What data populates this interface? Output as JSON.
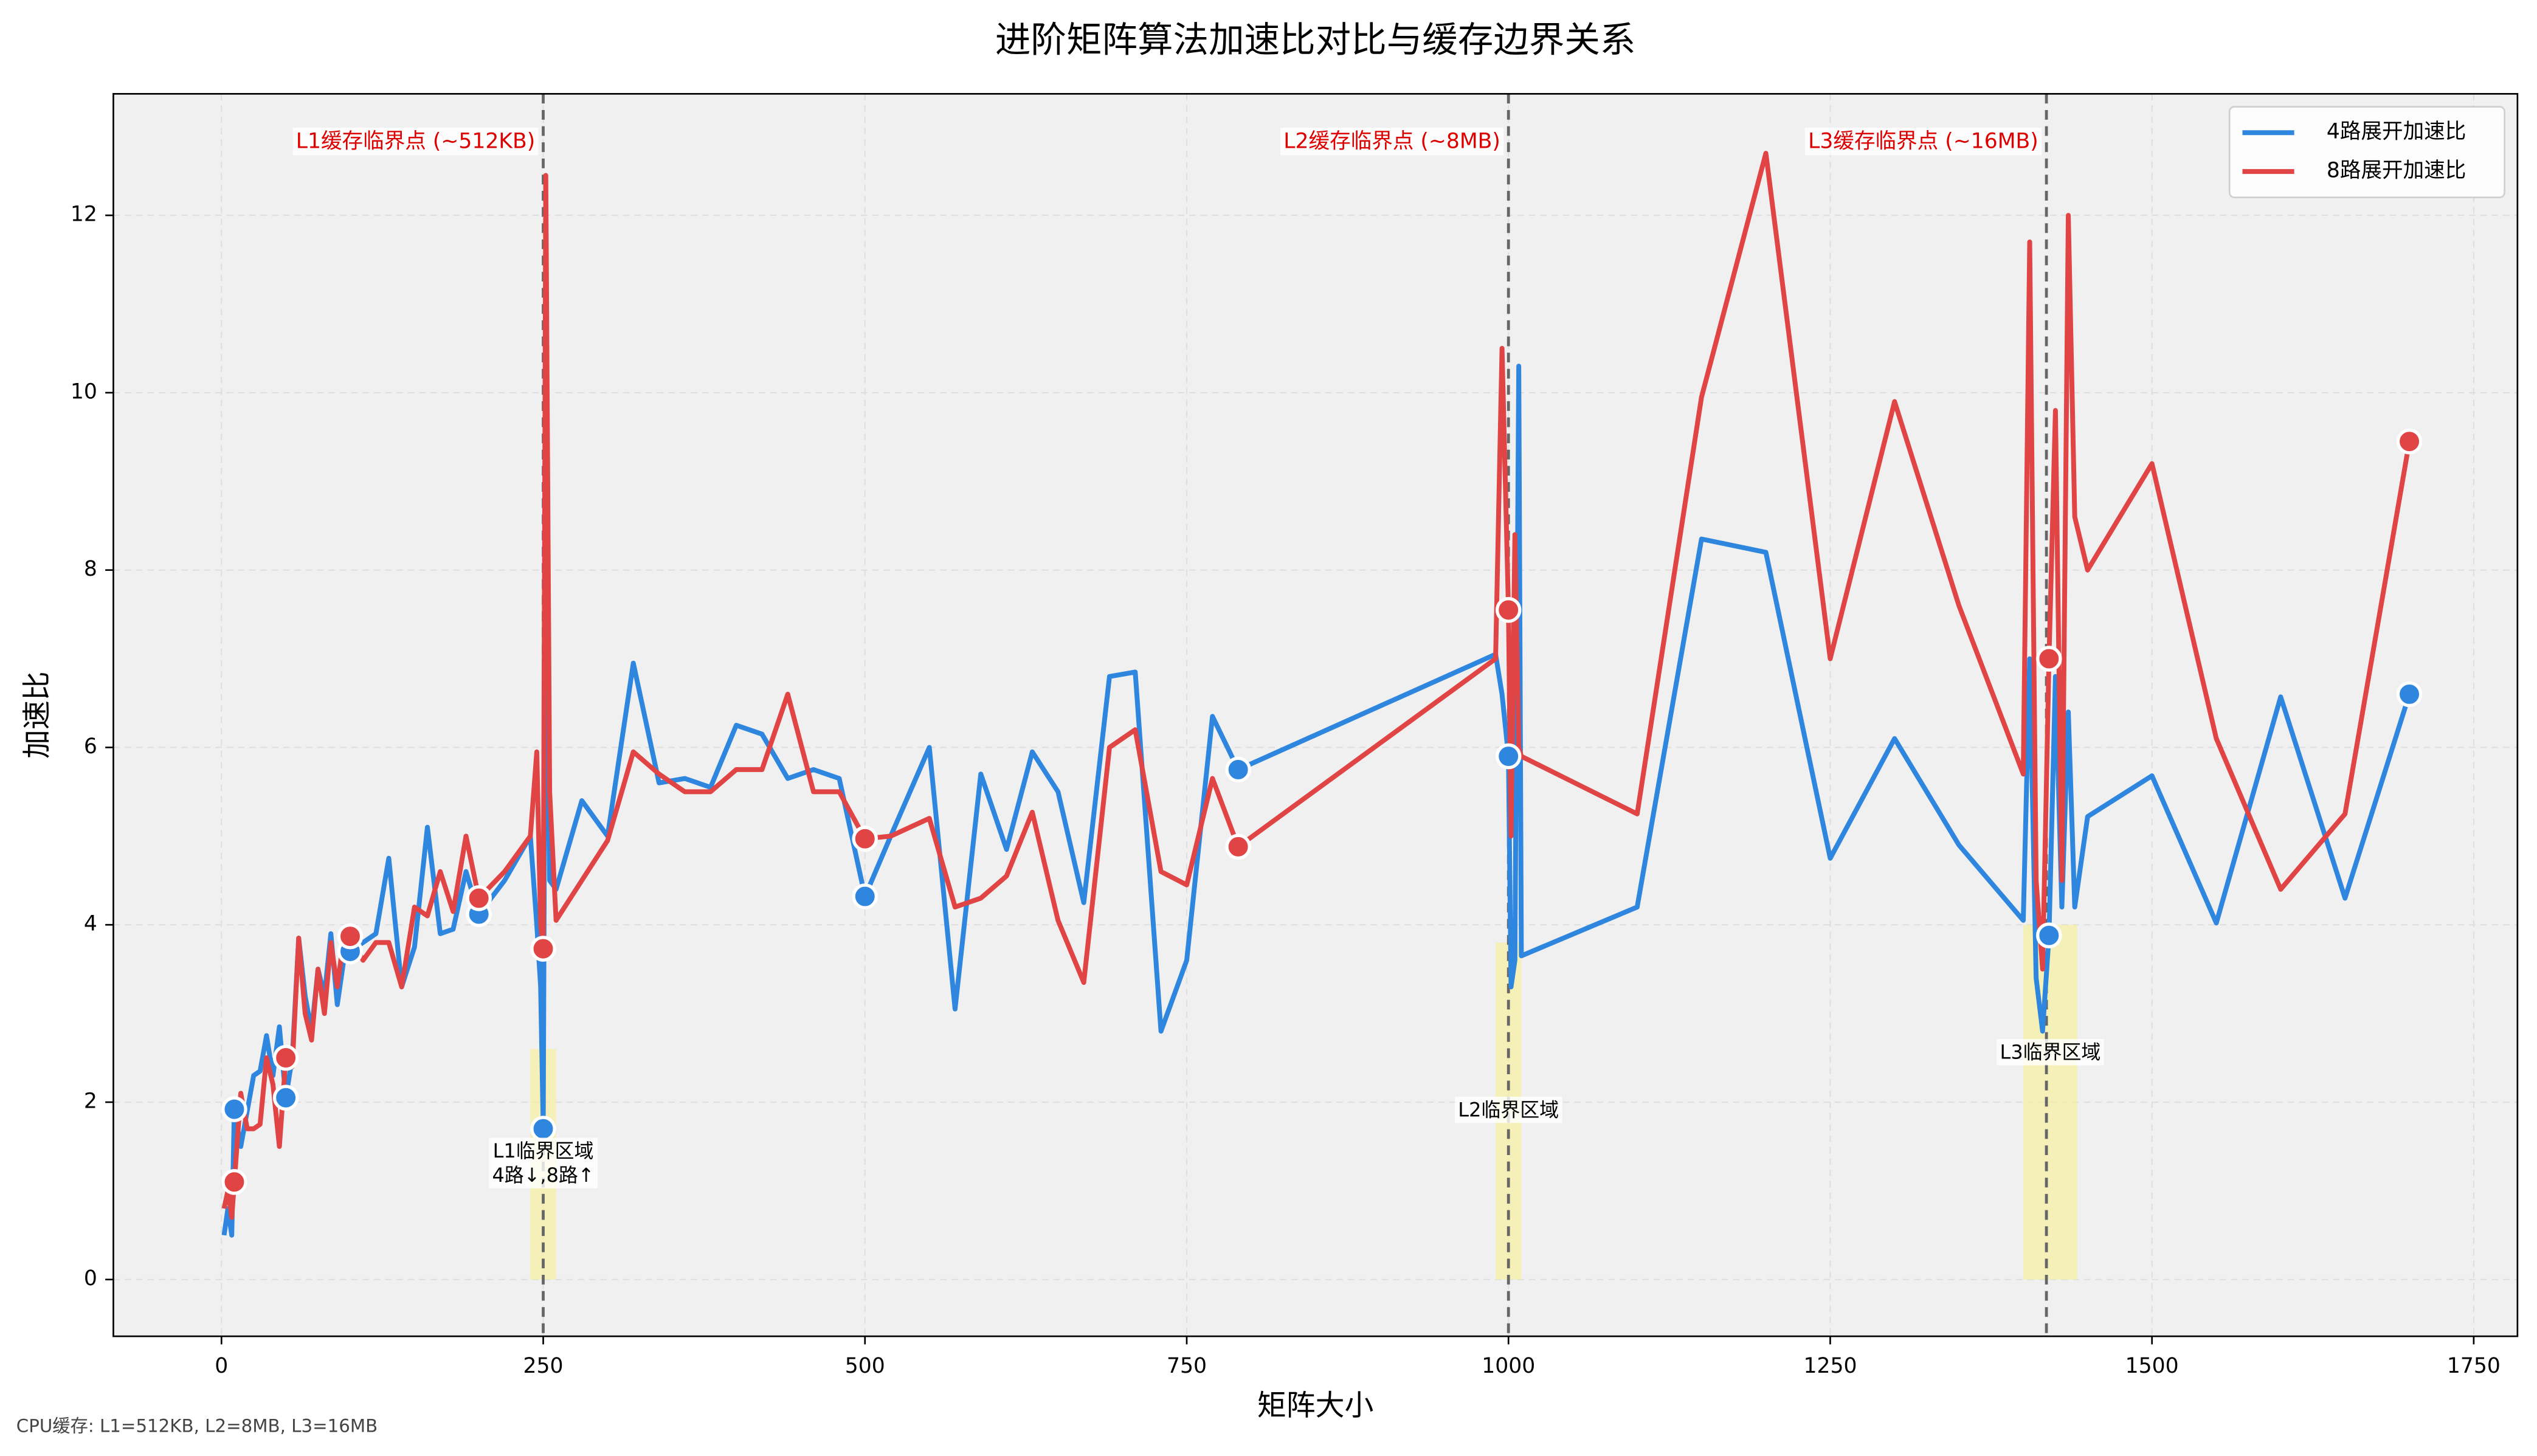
{
  "chart_data": {
    "type": "line",
    "title": "进阶矩阵算法加速比对比与缓存边界关系",
    "x_label": "矩阵大小",
    "y_label": "加速比",
    "footnote": "CPU缓存: L1=512KB, L2=8MB, L3=16MB",
    "x": [
      2,
      5,
      8,
      10,
      15,
      20,
      25,
      30,
      35,
      40,
      45,
      50,
      55,
      60,
      65,
      70,
      75,
      80,
      85,
      90,
      95,
      100,
      110,
      120,
      130,
      140,
      150,
      160,
      170,
      180,
      190,
      200,
      220,
      240,
      245,
      248,
      250,
      252,
      255,
      260,
      280,
      300,
      320,
      340,
      360,
      380,
      400,
      420,
      440,
      460,
      480,
      500,
      520,
      550,
      570,
      590,
      610,
      630,
      650,
      670,
      690,
      710,
      730,
      750,
      770,
      790,
      990,
      995,
      1000,
      1002,
      1005,
      1008,
      1010,
      1100,
      1150,
      1200,
      1250,
      1300,
      1350,
      1400,
      1405,
      1410,
      1415,
      1420,
      1425,
      1430,
      1435,
      1440,
      1450,
      1500,
      1550,
      1600,
      1650,
      1700
    ],
    "series": [
      {
        "name": "4路展开加速比",
        "color": "#2e86de",
        "values": [
          0.5,
          0.8,
          0.5,
          1.92,
          1.5,
          1.9,
          2.3,
          2.35,
          2.75,
          2.3,
          2.85,
          2.05,
          2.5,
          3.85,
          3.2,
          2.8,
          3.5,
          3.2,
          3.9,
          3.1,
          3.6,
          3.7,
          3.8,
          3.9,
          4.75,
          3.3,
          3.75,
          5.1,
          3.9,
          3.95,
          4.6,
          4.12,
          4.5,
          5.0,
          4.0,
          3.3,
          1.7,
          9.0,
          4.5,
          4.4,
          5.4,
          5.0,
          6.95,
          5.6,
          5.65,
          5.55,
          6.25,
          6.15,
          5.65,
          5.75,
          5.65,
          4.32,
          5.0,
          6.0,
          3.05,
          5.7,
          4.85,
          5.95,
          5.5,
          4.25,
          6.8,
          6.85,
          2.8,
          3.6,
          6.35,
          5.75,
          7.05,
          6.6,
          5.9,
          3.3,
          3.6,
          10.3,
          3.65,
          4.2,
          8.35,
          8.2,
          4.75,
          6.1,
          4.9,
          4.05,
          7.0,
          3.4,
          2.8,
          3.88,
          6.8,
          4.2,
          6.4,
          4.2,
          5.22,
          5.68,
          4.02,
          6.57,
          4.3,
          6.6
        ]
      },
      {
        "name": "8路展开加速比",
        "color": "#e04444",
        "values": [
          0.8,
          1.0,
          0.7,
          1.1,
          2.1,
          1.7,
          1.7,
          1.75,
          2.5,
          2.2,
          1.5,
          2.5,
          2.4,
          3.85,
          3.0,
          2.7,
          3.5,
          3.0,
          3.8,
          3.3,
          3.85,
          3.87,
          3.6,
          3.8,
          3.8,
          3.3,
          4.2,
          4.1,
          4.6,
          4.15,
          5.0,
          4.3,
          4.6,
          5.0,
          5.95,
          4.0,
          3.73,
          12.45,
          5.5,
          4.05,
          4.5,
          4.95,
          5.95,
          5.7,
          5.5,
          5.5,
          5.75,
          5.75,
          6.6,
          5.5,
          5.5,
          4.97,
          5.0,
          5.2,
          4.2,
          4.3,
          4.55,
          5.27,
          4.05,
          3.35,
          6.0,
          6.2,
          4.6,
          4.45,
          5.65,
          4.88,
          7.0,
          10.5,
          7.55,
          5.0,
          8.4,
          6.0,
          5.9,
          5.25,
          9.95,
          12.7,
          7.0,
          9.9,
          7.6,
          5.7,
          11.7,
          4.5,
          3.5,
          7.0,
          9.8,
          4.5,
          12.0,
          8.6,
          8.0,
          9.2,
          6.1,
          4.4,
          5.25,
          9.45
        ]
      }
    ],
    "markers_x": [
      10,
      50,
      100,
      200,
      250,
      500,
      790,
      1000,
      1420,
      1700
    ],
    "xlim": [
      -84,
      1784
    ],
    "xticks": [
      0,
      250,
      500,
      750,
      1000,
      1250,
      1500,
      1750
    ],
    "ylim": [
      -0.64,
      13.37
    ],
    "yticks": [
      0,
      2,
      4,
      6,
      8,
      10,
      12
    ],
    "grid": true,
    "legend": "upper right",
    "vlines": [
      {
        "x": 250,
        "label": "L1缓存临界点 (~512KB)"
      },
      {
        "x": 1000,
        "label": "L2缓存临界点 (~8MB)"
      },
      {
        "x": 1418,
        "label": "L3缓存临界点 (~16MB)"
      }
    ],
    "regions": [
      {
        "x": [
          240,
          260
        ],
        "top": 2.6,
        "label_y": 1.3,
        "label": [
          "L1临界区域",
          "4路↓,8路↑"
        ]
      },
      {
        "x": [
          990,
          1010
        ],
        "top": 3.8,
        "label_y": 1.9,
        "label": [
          "L2临界区域"
        ]
      },
      {
        "x": [
          1400,
          1442
        ],
        "top": 4.0,
        "label_y": 2.55,
        "label": [
          "L3临界区域"
        ]
      }
    ]
  }
}
